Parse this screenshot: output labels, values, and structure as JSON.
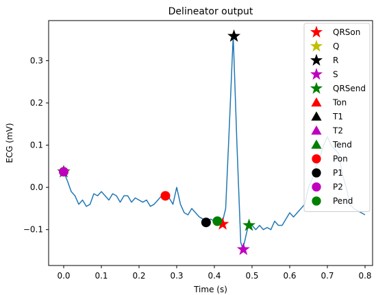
{
  "chart_data": {
    "type": "line",
    "title": "Delineator output",
    "xlabel": "Time (s)",
    "ylabel": "ECG (mV)",
    "xlim": [
      -0.04,
      0.82
    ],
    "ylim": [
      -0.185,
      0.395
    ],
    "xticks": [
      0.0,
      0.1,
      0.2,
      0.3,
      0.4,
      0.5,
      0.6,
      0.7,
      0.8
    ],
    "xtick_labels": [
      "0.0",
      "0.1",
      "0.2",
      "0.3",
      "0.4",
      "0.5",
      "0.6",
      "0.7",
      "0.8"
    ],
    "yticks": [
      -0.1,
      0.0,
      0.1,
      0.2,
      0.3
    ],
    "ytick_labels": [
      "−0.1",
      "0.0",
      "0.1",
      "0.2",
      "0.3"
    ],
    "legend_position": "top-right",
    "grid": false,
    "series": [
      {
        "color": "#1f77b4",
        "x": [
          0.0,
          0.01,
          0.02,
          0.03,
          0.04,
          0.05,
          0.06,
          0.07,
          0.08,
          0.09,
          0.1,
          0.11,
          0.12,
          0.13,
          0.14,
          0.15,
          0.16,
          0.17,
          0.18,
          0.19,
          0.2,
          0.21,
          0.22,
          0.23,
          0.24,
          0.25,
          0.26,
          0.27,
          0.28,
          0.29,
          0.3,
          0.31,
          0.32,
          0.33,
          0.34,
          0.35,
          0.36,
          0.37,
          0.38,
          0.39,
          0.4,
          0.41,
          0.42,
          0.43,
          0.44,
          0.45,
          0.46,
          0.47,
          0.475,
          0.48,
          0.49,
          0.5,
          0.51,
          0.52,
          0.53,
          0.54,
          0.55,
          0.56,
          0.57,
          0.58,
          0.59,
          0.6,
          0.61,
          0.62,
          0.63,
          0.64,
          0.65,
          0.66,
          0.67,
          0.68,
          0.69,
          0.7,
          0.71,
          0.72,
          0.73,
          0.74,
          0.75,
          0.76,
          0.77,
          0.78,
          0.79,
          0.8
        ],
        "y": [
          0.037,
          0.015,
          -0.01,
          -0.02,
          -0.04,
          -0.03,
          -0.045,
          -0.04,
          -0.015,
          -0.02,
          -0.01,
          -0.02,
          -0.03,
          -0.015,
          -0.02,
          -0.035,
          -0.02,
          -0.02,
          -0.035,
          -0.025,
          -0.03,
          -0.035,
          -0.03,
          -0.045,
          -0.04,
          -0.03,
          -0.02,
          -0.02,
          -0.025,
          -0.04,
          0.0,
          -0.04,
          -0.06,
          -0.065,
          -0.05,
          -0.06,
          -0.07,
          -0.075,
          -0.082,
          -0.075,
          -0.08,
          -0.08,
          -0.087,
          -0.05,
          0.15,
          0.36,
          0.1,
          -0.13,
          -0.145,
          -0.13,
          -0.09,
          -0.09,
          -0.1,
          -0.09,
          -0.1,
          -0.095,
          -0.1,
          -0.08,
          -0.09,
          -0.09,
          -0.075,
          -0.06,
          -0.07,
          -0.06,
          -0.05,
          -0.04,
          0.0,
          0.02,
          0.05,
          0.07,
          0.1,
          0.12,
          0.1,
          0.09,
          0.08,
          0.03,
          0.0,
          -0.04,
          -0.05,
          -0.055,
          -0.06,
          -0.065
        ]
      }
    ],
    "markers": [
      {
        "name": "QRSon",
        "shape": "star",
        "color": "#ff0000",
        "points": [
          [
            0.0,
            0.037
          ],
          [
            0.422,
            -0.087
          ]
        ]
      },
      {
        "name": "Q",
        "shape": "star",
        "color": "#bfbf00",
        "points": [
          [
            0.0,
            0.037
          ]
        ]
      },
      {
        "name": "R",
        "shape": "star",
        "color": "#000000",
        "points": [
          [
            0.452,
            0.358
          ]
        ]
      },
      {
        "name": "S",
        "shape": "star",
        "color": "#bf00bf",
        "points": [
          [
            0.477,
            -0.147
          ]
        ]
      },
      {
        "name": "QRSend",
        "shape": "star",
        "color": "#008000",
        "points": [
          [
            0.0,
            0.037
          ],
          [
            0.492,
            -0.09
          ]
        ]
      },
      {
        "name": "Ton",
        "shape": "triangle",
        "color": "#ff0000",
        "points": []
      },
      {
        "name": "T1",
        "shape": "triangle",
        "color": "#000000",
        "points": []
      },
      {
        "name": "T2",
        "shape": "triangle",
        "color": "#bf00bf",
        "points": []
      },
      {
        "name": "Tend",
        "shape": "triangle",
        "color": "#008000",
        "points": []
      },
      {
        "name": "Pon",
        "shape": "circle",
        "color": "#ff0000",
        "points": [
          [
            0.27,
            -0.02
          ]
        ]
      },
      {
        "name": "P1",
        "shape": "circle",
        "color": "#000000",
        "points": [
          [
            0.378,
            -0.083
          ]
        ]
      },
      {
        "name": "P2",
        "shape": "circle",
        "color": "#bf00bf",
        "points": [
          [
            0.0,
            0.037
          ]
        ]
      },
      {
        "name": "Pend",
        "shape": "circle",
        "color": "#008000",
        "points": [
          [
            0.408,
            -0.08
          ]
        ]
      }
    ]
  }
}
